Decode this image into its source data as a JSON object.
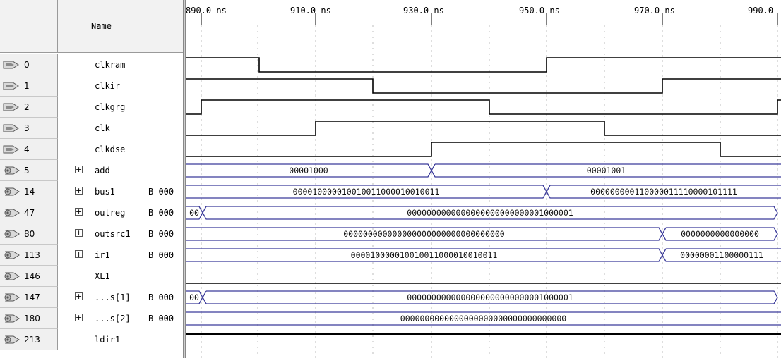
{
  "header": {
    "name_label": "Name"
  },
  "time_labels": [
    "890.0 ns",
    "910.0 ns",
    "930.0 ns",
    "950.0 ns",
    "970.0 ns",
    "990.0"
  ],
  "colors": {
    "bus": "#3b3b9a",
    "digital": "#000000",
    "grid": "#bdbdbd"
  },
  "signals": [
    {
      "id": "0",
      "icon": "input-pin-icon",
      "name": "clkram",
      "value": ""
    },
    {
      "id": "1",
      "icon": "input-pin-icon",
      "name": "clkir",
      "value": ""
    },
    {
      "id": "2",
      "icon": "input-pin-icon",
      "name": "clkgrg",
      "value": ""
    },
    {
      "id": "3",
      "icon": "input-pin-icon",
      "name": "clk",
      "value": ""
    },
    {
      "id": "4",
      "icon": "input-pin-icon",
      "name": "clkdse",
      "value": ""
    },
    {
      "id": "5",
      "icon": "output-pin-icon",
      "name": "add",
      "value": "",
      "expandable": true
    },
    {
      "id": "14",
      "icon": "output-pin-icon",
      "name": "bus1",
      "value": "B 000",
      "expandable": true
    },
    {
      "id": "47",
      "icon": "output-pin-icon",
      "name": "outreg",
      "value": "B 000",
      "expandable": true
    },
    {
      "id": "80",
      "icon": "output-pin-icon",
      "name": "outsrc1",
      "value": "B 000",
      "expandable": true
    },
    {
      "id": "113",
      "icon": "output-pin-icon",
      "name": "ir1",
      "value": "B 000",
      "expandable": true
    },
    {
      "id": "146",
      "icon": "output-pin-icon",
      "name": "XL1",
      "value": ""
    },
    {
      "id": "147",
      "icon": "output-pin-icon",
      "name": "...s[1]",
      "value": "B 000",
      "expandable": true
    },
    {
      "id": "180",
      "icon": "output-pin-icon",
      "name": "...s[2]",
      "value": "B 000",
      "expandable": true
    },
    {
      "id": "213",
      "icon": "output-pin-icon",
      "name": "ldir1",
      "value": ""
    }
  ],
  "bus_values": {
    "add": [
      "00001000",
      "00001001"
    ],
    "bus1": [
      "000010000010010011000010010011",
      "000000000110000011110000101111"
    ],
    "outreg": [
      "00",
      "0000000000000000000000000001000001"
    ],
    "outsrc1": [
      "000000000000000000000000000000000",
      "0000000000000000"
    ],
    "ir1": [
      "000010000010010011000010010011",
      "00000001100000111"
    ],
    "s1": [
      "00",
      "0000000000000000000000000001000001"
    ],
    "s2": [
      "0000000000000000000000000000000000"
    ]
  }
}
